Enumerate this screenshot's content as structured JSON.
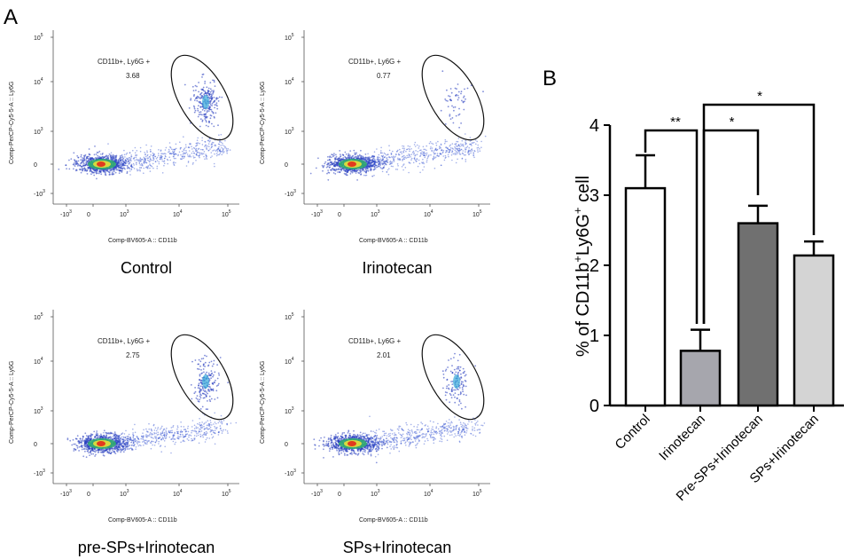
{
  "panel_a_label": "A",
  "panel_b_label": "B",
  "flow_axes": {
    "x_label": "Comp-BV605-A :: CD11b",
    "y_label": "Comp-PerCP-Cy5-5-A :: Ly6G",
    "x_ticks": [
      "-10",
      "0",
      "10",
      "10",
      "10"
    ],
    "x_tick_exps": [
      "3",
      "",
      "3",
      "4",
      "5"
    ],
    "y_ticks": [
      "10",
      "10",
      "10",
      "0",
      "-10"
    ],
    "y_tick_exps": [
      "5",
      "4",
      "3",
      "",
      "3"
    ]
  },
  "flow_panels": [
    {
      "name": "Control",
      "gate_label": "CD11b+, Ly6G +",
      "gate_value": "3.68",
      "density": 1.0
    },
    {
      "name": "Irinotecan",
      "gate_label": "CD11b+, Ly6G +",
      "gate_value": "0.77",
      "density": 0.25
    },
    {
      "name": "pre-SPs+Irinotecan",
      "gate_label": "CD11b+, Ly6G +",
      "gate_value": "2.75",
      "density": 0.8
    },
    {
      "name": "SPs+Irinotecan",
      "gate_label": "CD11b+, Ly6G +",
      "gate_value": "2.01",
      "density": 0.55
    }
  ],
  "chart_data": {
    "type": "bar",
    "ylabel_main": "% of CD11b",
    "ylabel_sup1": "+",
    "ylabel_mid": "Ly6G",
    "ylabel_sup2": "+",
    "ylabel_end": " cell",
    "ylim": [
      0,
      4
    ],
    "y_ticks": [
      "0",
      "1",
      "2",
      "3",
      "4"
    ],
    "categories": [
      "Control",
      "Irinotecan",
      "Pre-SPs+Irinotecan",
      "SPs+Irinotecan"
    ],
    "values": [
      3.1,
      0.78,
      2.6,
      2.14
    ],
    "errors": [
      0.47,
      0.3,
      0.25,
      0.2
    ],
    "colors": [
      "#ffffff",
      "#a6a6ad",
      "#707070",
      "#d4d4d4"
    ],
    "significance": [
      {
        "from": 0,
        "to": 1,
        "label": "**"
      },
      {
        "from": 1,
        "to": 2,
        "label": "*"
      },
      {
        "from": 1,
        "to": 3,
        "label": "*"
      }
    ]
  }
}
